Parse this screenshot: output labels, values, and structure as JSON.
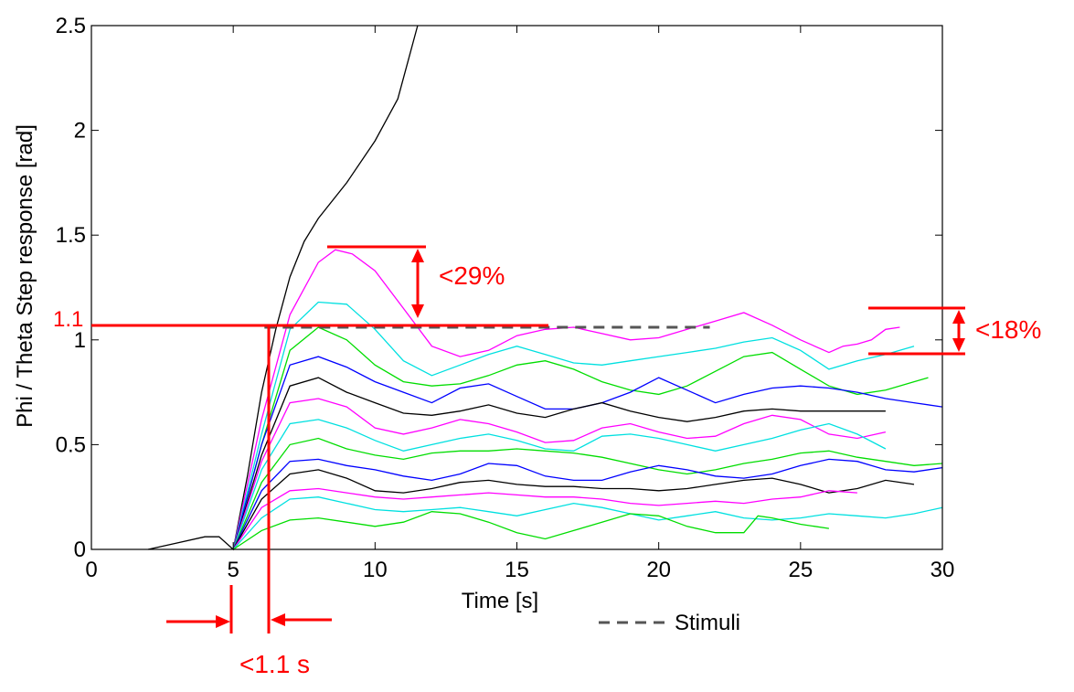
{
  "chart_data": {
    "type": "line",
    "xlabel": "Time [s]",
    "ylabel": "Phi / Theta Step response [rad]",
    "xlim": [
      0,
      30
    ],
    "ylim": [
      0,
      2.5
    ],
    "xticks": [
      0,
      5,
      10,
      15,
      20,
      25,
      30
    ],
    "yticks": [
      0,
      0.5,
      1,
      1.5,
      2,
      2.5
    ],
    "xtick_labels": [
      "0",
      "5",
      "10",
      "15",
      "20",
      "25",
      "30"
    ],
    "ytick_labels": [
      "0",
      "0.5",
      "1",
      "1.5",
      "2",
      "2.5"
    ],
    "grid": false,
    "legend": {
      "placement": "bottom-center",
      "entries": [
        {
          "label": "Stimuli",
          "style": "dashed",
          "color": "#555555"
        }
      ]
    },
    "stimulus": {
      "x": [
        6.1,
        21.8
      ],
      "y": [
        1.06,
        1.06
      ]
    },
    "series": [
      {
        "color": "#000000",
        "x": [
          2,
          3,
          4,
          4.5,
          5,
          5.5,
          6,
          6.5,
          7,
          7.5,
          8,
          9,
          10,
          10.8,
          11.2,
          11.5
        ],
        "y": [
          0,
          0.03,
          0.06,
          0.06,
          0,
          0.35,
          0.75,
          1.05,
          1.3,
          1.47,
          1.58,
          1.75,
          1.95,
          2.15,
          2.35,
          2.5
        ]
      },
      {
        "color": "#ff00ff",
        "x": [
          5,
          6,
          7,
          8,
          8.6,
          9.2,
          10,
          11,
          12,
          13,
          14,
          15,
          16,
          17,
          18,
          19,
          20,
          21,
          22,
          23,
          24,
          25,
          26,
          26.5,
          27,
          27.5,
          28,
          28.5
        ],
        "y": [
          0,
          0.62,
          1.12,
          1.37,
          1.43,
          1.41,
          1.33,
          1.15,
          0.97,
          0.92,
          0.95,
          1.02,
          1.05,
          1.06,
          1.03,
          1.0,
          1.01,
          1.05,
          1.09,
          1.13,
          1.07,
          1.0,
          0.94,
          0.97,
          0.98,
          1.0,
          1.05,
          1.06
        ]
      },
      {
        "color": "#00e0e0",
        "x": [
          5,
          6,
          7,
          8,
          9,
          10,
          11,
          12,
          13,
          14,
          15,
          16,
          17,
          18,
          19,
          20,
          21,
          22,
          23,
          24,
          25,
          26,
          27,
          28,
          29
        ],
        "y": [
          0,
          0.55,
          1.05,
          1.18,
          1.17,
          1.05,
          0.9,
          0.83,
          0.88,
          0.93,
          0.97,
          0.93,
          0.89,
          0.88,
          0.9,
          0.92,
          0.94,
          0.96,
          0.99,
          1.01,
          0.95,
          0.86,
          0.9,
          0.93,
          0.97
        ]
      },
      {
        "color": "#00dd00",
        "x": [
          5,
          6,
          7,
          8,
          9,
          10,
          11,
          12,
          13,
          14,
          15,
          16,
          17,
          18,
          19,
          20,
          21,
          22,
          23,
          24,
          25,
          26,
          27,
          28,
          29,
          29.5
        ],
        "y": [
          0,
          0.5,
          0.95,
          1.06,
          1.0,
          0.88,
          0.8,
          0.78,
          0.79,
          0.83,
          0.88,
          0.9,
          0.86,
          0.8,
          0.76,
          0.74,
          0.78,
          0.85,
          0.92,
          0.94,
          0.86,
          0.78,
          0.74,
          0.76,
          0.8,
          0.82
        ]
      },
      {
        "color": "#0000ff",
        "x": [
          5,
          6,
          7,
          8,
          9,
          10,
          11,
          12,
          13,
          14,
          15,
          16,
          17,
          18,
          19,
          20,
          21,
          22,
          23,
          24,
          25,
          26,
          27,
          28,
          29,
          30
        ],
        "y": [
          0,
          0.5,
          0.88,
          0.92,
          0.87,
          0.8,
          0.75,
          0.7,
          0.77,
          0.79,
          0.73,
          0.67,
          0.67,
          0.7,
          0.75,
          0.82,
          0.76,
          0.7,
          0.74,
          0.77,
          0.78,
          0.77,
          0.75,
          0.72,
          0.7,
          0.68
        ]
      },
      {
        "color": "#000000",
        "x": [
          5,
          6,
          7,
          8,
          9,
          10,
          11,
          12,
          13,
          14,
          15,
          16,
          17,
          18,
          19,
          20,
          21,
          22,
          23,
          24,
          25,
          26,
          27,
          28
        ],
        "y": [
          0,
          0.45,
          0.78,
          0.82,
          0.75,
          0.7,
          0.65,
          0.64,
          0.66,
          0.69,
          0.65,
          0.63,
          0.67,
          0.7,
          0.66,
          0.63,
          0.61,
          0.63,
          0.66,
          0.67,
          0.66,
          0.66,
          0.66,
          0.66
        ]
      },
      {
        "color": "#ff00ff",
        "x": [
          5,
          6,
          7,
          8,
          9,
          10,
          11,
          12,
          13,
          14,
          15,
          16,
          17,
          18,
          19,
          20,
          21,
          22,
          23,
          24,
          25,
          26,
          27,
          28
        ],
        "y": [
          0,
          0.42,
          0.7,
          0.72,
          0.68,
          0.58,
          0.55,
          0.58,
          0.62,
          0.6,
          0.56,
          0.51,
          0.52,
          0.58,
          0.6,
          0.56,
          0.53,
          0.54,
          0.6,
          0.64,
          0.62,
          0.55,
          0.53,
          0.56
        ]
      },
      {
        "color": "#00e0e0",
        "x": [
          5,
          6,
          7,
          8,
          9,
          10,
          11,
          12,
          13,
          14,
          15,
          16,
          17,
          18,
          19,
          20,
          21,
          22,
          23,
          24,
          25,
          26,
          27,
          28
        ],
        "y": [
          0,
          0.38,
          0.6,
          0.62,
          0.58,
          0.52,
          0.47,
          0.5,
          0.53,
          0.55,
          0.52,
          0.48,
          0.47,
          0.54,
          0.55,
          0.53,
          0.5,
          0.47,
          0.5,
          0.53,
          0.57,
          0.6,
          0.55,
          0.48
        ]
      },
      {
        "color": "#00dd00",
        "x": [
          5,
          6,
          7,
          8,
          9,
          10,
          11,
          12,
          13,
          14,
          15,
          16,
          17,
          18,
          19,
          20,
          21,
          22,
          23,
          24,
          25,
          26,
          27,
          28,
          29,
          30
        ],
        "y": [
          0,
          0.32,
          0.5,
          0.53,
          0.48,
          0.45,
          0.43,
          0.46,
          0.47,
          0.47,
          0.48,
          0.47,
          0.46,
          0.44,
          0.41,
          0.38,
          0.36,
          0.38,
          0.41,
          0.43,
          0.46,
          0.47,
          0.44,
          0.42,
          0.4,
          0.41
        ]
      },
      {
        "color": "#0000ff",
        "x": [
          5,
          6,
          7,
          8,
          9,
          10,
          11,
          12,
          13,
          14,
          15,
          16,
          17,
          18,
          19,
          20,
          21,
          22,
          23,
          24,
          25,
          26,
          27,
          28,
          29,
          30
        ],
        "y": [
          0,
          0.28,
          0.42,
          0.43,
          0.4,
          0.38,
          0.35,
          0.33,
          0.36,
          0.41,
          0.4,
          0.35,
          0.33,
          0.33,
          0.37,
          0.4,
          0.38,
          0.35,
          0.34,
          0.36,
          0.4,
          0.43,
          0.42,
          0.38,
          0.37,
          0.39
        ]
      },
      {
        "color": "#000000",
        "x": [
          5,
          6,
          7,
          8,
          9,
          10,
          11,
          12,
          13,
          14,
          15,
          16,
          17,
          18,
          19,
          20,
          21,
          22,
          23,
          24,
          25,
          26,
          27,
          28,
          29
        ],
        "y": [
          0,
          0.24,
          0.36,
          0.38,
          0.34,
          0.28,
          0.27,
          0.29,
          0.32,
          0.33,
          0.31,
          0.3,
          0.3,
          0.29,
          0.29,
          0.28,
          0.29,
          0.31,
          0.33,
          0.34,
          0.31,
          0.27,
          0.29,
          0.33,
          0.31
        ]
      },
      {
        "color": "#ff00ff",
        "x": [
          5,
          6,
          7,
          8,
          9,
          10,
          11,
          12,
          13,
          14,
          15,
          16,
          17,
          18,
          19,
          20,
          21,
          22,
          23,
          24,
          25,
          26,
          27
        ],
        "y": [
          0,
          0.2,
          0.28,
          0.29,
          0.27,
          0.25,
          0.24,
          0.25,
          0.26,
          0.27,
          0.26,
          0.25,
          0.25,
          0.24,
          0.22,
          0.21,
          0.22,
          0.23,
          0.22,
          0.24,
          0.25,
          0.28,
          0.27
        ]
      },
      {
        "color": "#00e0e0",
        "x": [
          5,
          6,
          7,
          8,
          9,
          10,
          11,
          12,
          13,
          14,
          15,
          16,
          17,
          18,
          19,
          20,
          21,
          22,
          23,
          24,
          25,
          26,
          27,
          28,
          29,
          30
        ],
        "y": [
          0,
          0.15,
          0.24,
          0.25,
          0.22,
          0.19,
          0.18,
          0.19,
          0.2,
          0.18,
          0.16,
          0.19,
          0.22,
          0.2,
          0.17,
          0.14,
          0.16,
          0.18,
          0.15,
          0.14,
          0.15,
          0.17,
          0.16,
          0.15,
          0.17,
          0.2
        ]
      },
      {
        "color": "#00dd00",
        "x": [
          5,
          6,
          7,
          8,
          9,
          10,
          11,
          12,
          13,
          14,
          15,
          16,
          17,
          18,
          19,
          20,
          21,
          22,
          23,
          23.5,
          24,
          25,
          26
        ],
        "y": [
          0,
          0.09,
          0.14,
          0.15,
          0.13,
          0.11,
          0.13,
          0.18,
          0.17,
          0.13,
          0.08,
          0.05,
          0.09,
          0.13,
          0.17,
          0.16,
          0.11,
          0.08,
          0.08,
          0.16,
          0.15,
          0.12,
          0.1
        ]
      }
    ]
  },
  "annotations": {
    "setpoint_label": "1.1",
    "overshoot_label": "<29%",
    "band_label": "<18%",
    "delay_label": "<1.1 s",
    "color": "#ff0000"
  }
}
